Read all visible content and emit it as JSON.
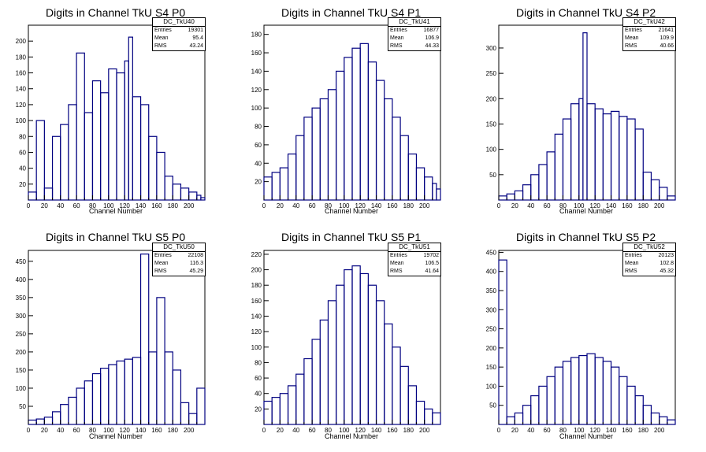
{
  "canvas": {
    "hist_color": "#000080"
  },
  "chart_data": [
    {
      "type": "bar",
      "title": "Digits in Channel TkU S4 P0",
      "xlabel": "Channel Number",
      "ylabel": "",
      "xlim": [
        0,
        220
      ],
      "ylim": [
        0,
        220
      ],
      "yticks": [
        20,
        40,
        60,
        80,
        100,
        120,
        140,
        160,
        180,
        200
      ],
      "stats": {
        "name": "DC_TkU40",
        "entries": "19301",
        "mean": "95.4",
        "rms": "43.24"
      },
      "x": [
        0,
        10,
        20,
        30,
        40,
        50,
        60,
        70,
        80,
        90,
        100,
        110,
        120,
        125,
        130,
        140,
        150,
        160,
        170,
        180,
        190,
        200,
        210,
        215
      ],
      "values": [
        10,
        100,
        15,
        80,
        95,
        120,
        185,
        110,
        150,
        135,
        165,
        160,
        175,
        205,
        130,
        120,
        80,
        60,
        30,
        20,
        15,
        10,
        6,
        3
      ]
    },
    {
      "type": "bar",
      "title": "Digits in Channel TkU S4 P1",
      "xlabel": "Channel Number",
      "ylabel": "",
      "xlim": [
        0,
        220
      ],
      "ylim": [
        0,
        190
      ],
      "yticks": [
        20,
        40,
        60,
        80,
        100,
        120,
        140,
        160,
        180
      ],
      "stats": {
        "name": "DC_TkU41",
        "entries": "16877",
        "mean": "106.9",
        "rms": "44.33"
      },
      "x": [
        0,
        10,
        20,
        30,
        40,
        50,
        60,
        70,
        80,
        90,
        100,
        110,
        120,
        130,
        140,
        150,
        160,
        170,
        180,
        190,
        200,
        210,
        215
      ],
      "values": [
        25,
        30,
        35,
        50,
        70,
        90,
        100,
        110,
        120,
        140,
        155,
        165,
        170,
        150,
        130,
        110,
        90,
        70,
        50,
        35,
        25,
        18,
        12
      ]
    },
    {
      "type": "bar",
      "title": "Digits in Channel TkU S4 P2",
      "xlabel": "Channel Number",
      "ylabel": "",
      "xlim": [
        0,
        220
      ],
      "ylim": [
        0,
        345
      ],
      "yticks": [
        50,
        100,
        150,
        200,
        250,
        300
      ],
      "stats": {
        "name": "DC_TkU42",
        "entries": "21641",
        "mean": "109.9",
        "rms": "40.66"
      },
      "x": [
        0,
        10,
        20,
        30,
        40,
        50,
        60,
        70,
        80,
        90,
        100,
        105,
        110,
        120,
        130,
        140,
        150,
        160,
        170,
        180,
        190,
        200,
        210
      ],
      "values": [
        8,
        12,
        18,
        30,
        50,
        70,
        95,
        130,
        160,
        190,
        200,
        330,
        190,
        180,
        170,
        175,
        165,
        160,
        140,
        55,
        40,
        25,
        8
      ]
    },
    {
      "type": "bar",
      "title": "Digits in Channel TkU S5 P0",
      "xlabel": "Channel Number",
      "ylabel": "",
      "xlim": [
        0,
        220
      ],
      "ylim": [
        0,
        480
      ],
      "yticks": [
        50,
        100,
        150,
        200,
        250,
        300,
        350,
        400,
        450
      ],
      "stats": {
        "name": "DC_TkU50",
        "entries": "22108",
        "mean": "116.3",
        "rms": "45.29"
      },
      "x": [
        0,
        10,
        20,
        30,
        40,
        50,
        60,
        70,
        80,
        90,
        100,
        110,
        120,
        130,
        140,
        150,
        160,
        170,
        180,
        190,
        200,
        210
      ],
      "values": [
        12,
        15,
        20,
        35,
        55,
        75,
        100,
        120,
        140,
        155,
        165,
        175,
        180,
        185,
        470,
        200,
        350,
        200,
        150,
        60,
        30,
        100
      ]
    },
    {
      "type": "bar",
      "title": "Digits in Channel TkU S5 P1",
      "xlabel": "Channel Number",
      "ylabel": "",
      "xlim": [
        0,
        220
      ],
      "ylim": [
        0,
        225
      ],
      "yticks": [
        20,
        40,
        60,
        80,
        100,
        120,
        140,
        160,
        180,
        200,
        220
      ],
      "stats": {
        "name": "DC_TkU51",
        "entries": "19702",
        "mean": "106.5",
        "rms": "41.64"
      },
      "x": [
        0,
        10,
        20,
        30,
        40,
        50,
        60,
        70,
        80,
        90,
        100,
        110,
        120,
        130,
        140,
        150,
        160,
        170,
        180,
        190,
        200,
        210
      ],
      "values": [
        30,
        35,
        40,
        50,
        65,
        85,
        110,
        135,
        160,
        180,
        200,
        205,
        195,
        180,
        160,
        130,
        100,
        75,
        50,
        30,
        20,
        15
      ]
    },
    {
      "type": "bar",
      "title": "Digits in Channel TkU S5 P2",
      "xlabel": "Channel Number",
      "ylabel": "",
      "xlim": [
        0,
        220
      ],
      "ylim": [
        0,
        455
      ],
      "yticks": [
        50,
        100,
        150,
        200,
        250,
        300,
        350,
        400,
        450
      ],
      "stats": {
        "name": "DC_TkU52",
        "entries": "20123",
        "mean": "102.8",
        "rms": "45.32"
      },
      "x": [
        0,
        10,
        20,
        30,
        40,
        50,
        60,
        70,
        80,
        90,
        100,
        110,
        120,
        130,
        140,
        150,
        160,
        170,
        180,
        190,
        200,
        210
      ],
      "values": [
        430,
        20,
        30,
        50,
        75,
        100,
        125,
        150,
        165,
        175,
        180,
        185,
        175,
        165,
        150,
        125,
        100,
        75,
        50,
        30,
        20,
        12
      ]
    }
  ],
  "labels": {
    "entries": "Entries",
    "mean": "Mean",
    "rms": "RMS"
  }
}
